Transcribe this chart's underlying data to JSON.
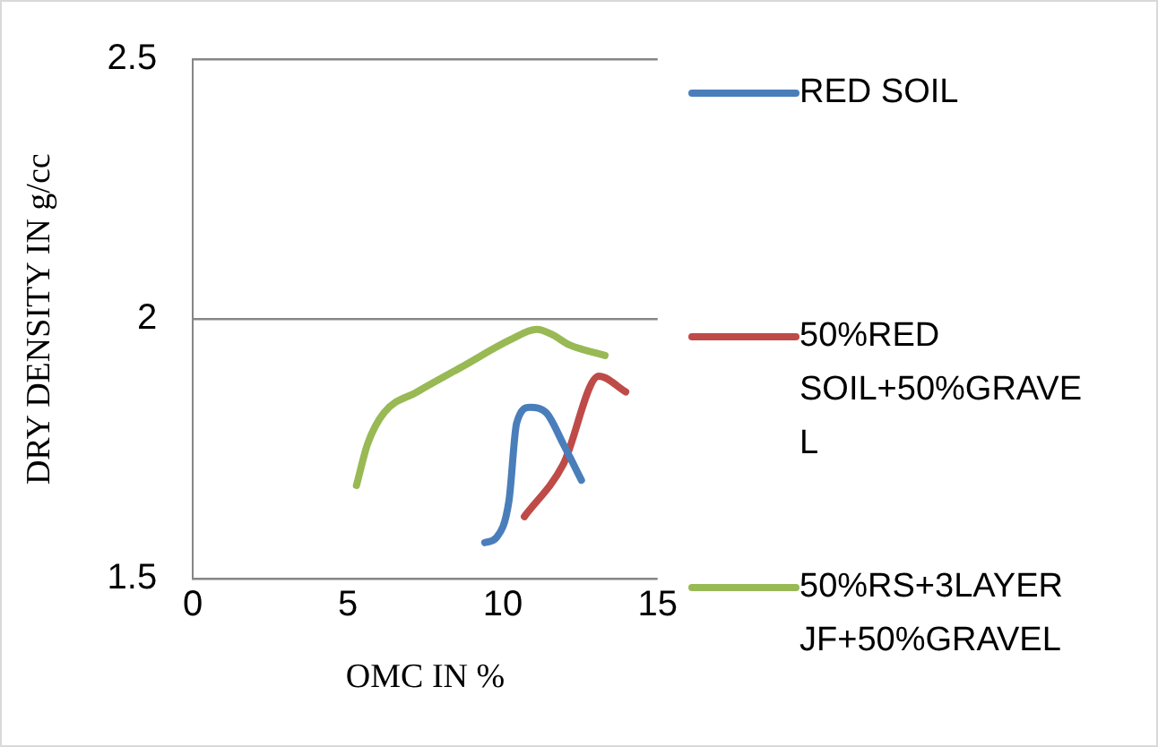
{
  "chart_data": {
    "type": "line",
    "xlabel": "OMC IN %",
    "ylabel": "DRY DENSITY IN g/cc",
    "xlim": [
      0,
      15
    ],
    "xticks": [
      0,
      5,
      10,
      15
    ],
    "ylim": [
      1.5,
      2.5
    ],
    "yticks": [
      1.5,
      2,
      2.5
    ],
    "grid": "y",
    "legend": "right",
    "marker": "none",
    "series": [
      {
        "name": "RED SOIL",
        "color": "#4a7ebb",
        "x": [
          9.42,
          9.8,
          10.2,
          10.45,
          10.88,
          11.4,
          11.95,
          12.54
        ],
        "values": [
          1.57,
          1.58,
          1.65,
          1.8,
          1.83,
          1.82,
          1.76,
          1.69
        ]
      },
      {
        "name": "50%RED SOIL+50%GRAVEL",
        "color": "#be4b48",
        "x": [
          10.7,
          11.95,
          13.1,
          13.97
        ],
        "values": [
          1.62,
          1.72,
          1.89,
          1.86
        ]
      },
      {
        "name": "50%RS+3LAYER JF+50%GRAVEL",
        "color": "#98b954",
        "x": [
          5.28,
          5.64,
          6.17,
          7.24,
          8.74,
          10.24,
          11.1,
          11.6,
          12.16,
          13.3
        ],
        "values": [
          1.68,
          1.76,
          1.82,
          1.86,
          1.91,
          1.96,
          1.98,
          1.97,
          1.95,
          1.93
        ]
      }
    ]
  }
}
